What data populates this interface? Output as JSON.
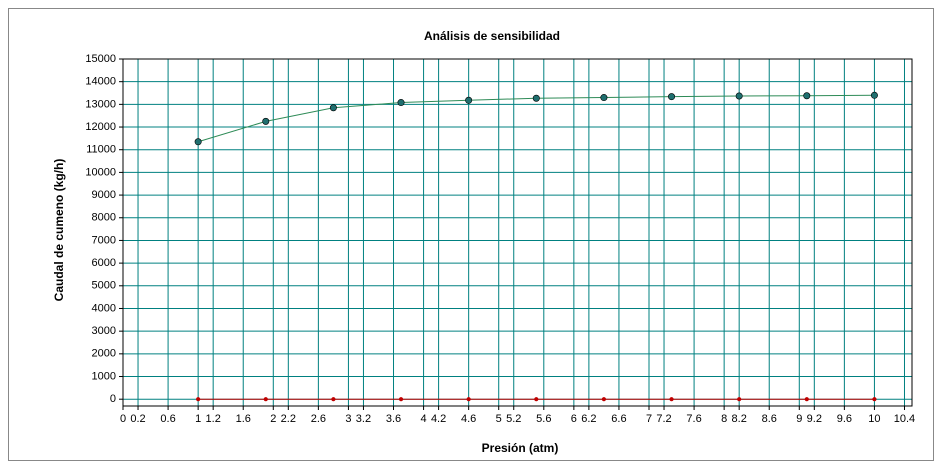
{
  "chart_data": {
    "type": "line",
    "title": "Análisis de sensibilidad",
    "x_label": "Presión (atm)",
    "y_label": "Caudal de cumeno (kg/h)",
    "x": [
      1,
      1.9,
      2.8,
      3.7,
      4.6,
      5.5,
      6.4,
      7.3,
      8.2,
      9.1,
      10
    ],
    "series": [
      {
        "color": "#2e8b57",
        "marker_color": "#1f6f6f",
        "values": [
          11350,
          12250,
          12850,
          13080,
          13180,
          13270,
          13300,
          13340,
          13370,
          13380,
          13400
        ]
      },
      {
        "color": "#c00000",
        "marker_color": "#c00000",
        "values": [
          0,
          0,
          0,
          0,
          0,
          0,
          0,
          0,
          0,
          0,
          0
        ]
      }
    ],
    "xlim": [
      0,
      10.5
    ],
    "ylim": [
      -300,
      15000
    ],
    "xticks": [
      0,
      0.2,
      0.6,
      1,
      1.2,
      1.6,
      2,
      2.2,
      2.6,
      3,
      3.2,
      3.6,
      4,
      4.2,
      4.6,
      5,
      5.2,
      5.6,
      6,
      6.2,
      6.6,
      7,
      7.2,
      7.6,
      8,
      8.2,
      8.6,
      9,
      9.2,
      9.6,
      10,
      10.4
    ],
    "yticks": [
      0,
      1000,
      2000,
      3000,
      4000,
      5000,
      6000,
      7000,
      8000,
      9000,
      10000,
      11000,
      12000,
      13000,
      14000,
      15000
    ],
    "grid": true,
    "grid_color": "#008080"
  }
}
